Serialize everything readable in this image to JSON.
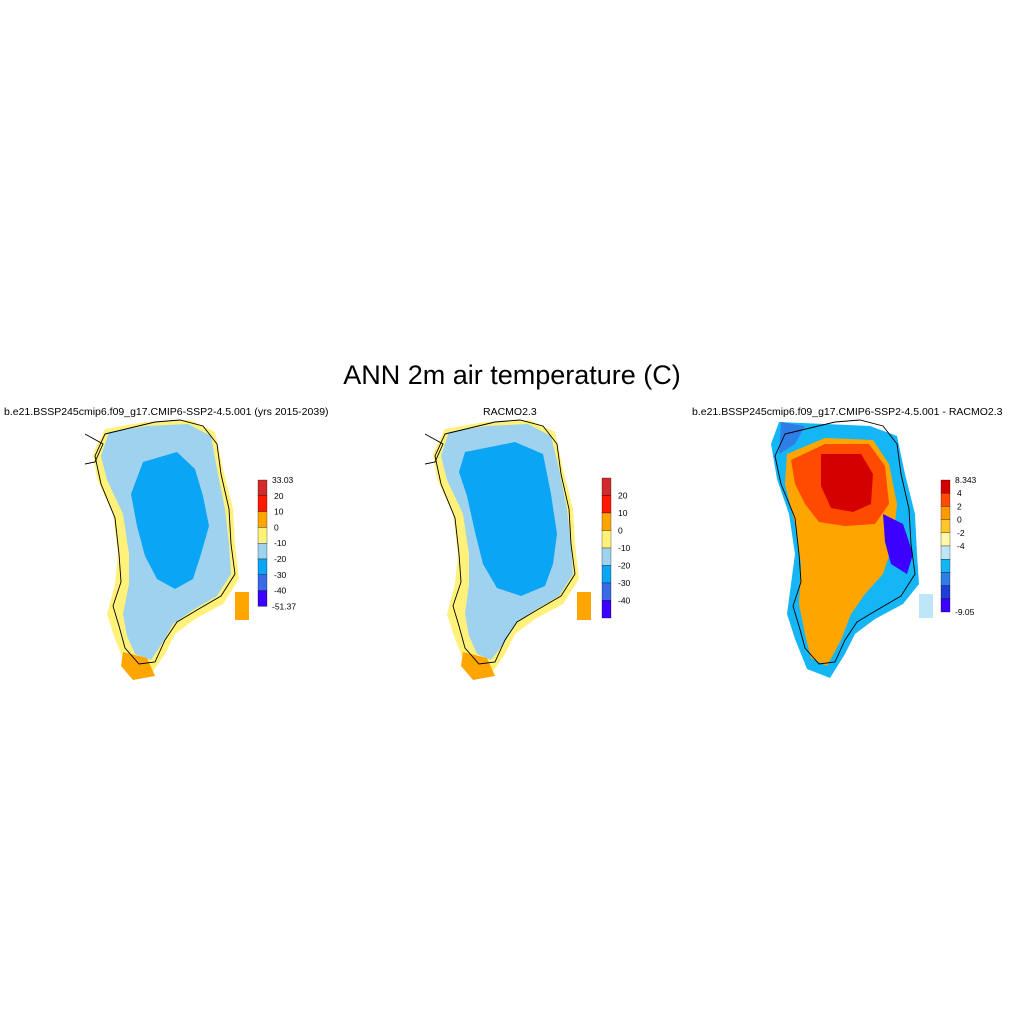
{
  "title": "ANN 2m air temperature (C)",
  "colors": {
    "scale": [
      "#3b00ff",
      "#3a6ae6",
      "#0aa5f5",
      "#9fd2ee",
      "#fff17a",
      "#ffa500",
      "#ff1900",
      "#d32b2b"
    ],
    "diff_scale": [
      "#3b00ff",
      "#1f3ed8",
      "#2f7ee8",
      "#14b6f5",
      "#bfe6f8",
      "#fff7a8",
      "#ffc72e",
      "#ff9a00",
      "#ff4a00",
      "#d40000"
    ]
  },
  "panels": [
    {
      "title": "b.e21.BSSP245cmip6.f09_g17.CMIP6-SSP2-4.5.001 (yrs 2015-2039)",
      "colorbar": {
        "max_label": "33.03",
        "min_label": "-51.37",
        "labels": [
          "20",
          "10",
          "0",
          "-10",
          "-20",
          "-30",
          "-40"
        ]
      }
    },
    {
      "title": "RACMO2.3",
      "colorbar": {
        "labels": [
          "20",
          "10",
          "0",
          "-10",
          "-20",
          "-30",
          "-40"
        ]
      }
    },
    {
      "title": "b.e21.BSSP245cmip6.f09_g17.CMIP6-SSP2-4.5.001 - RACMO2.3",
      "colorbar": {
        "max_label": "8.343",
        "min_label": "-9.05",
        "labels": [
          "4",
          "2",
          "0",
          "-2",
          "-4"
        ]
      }
    }
  ]
}
